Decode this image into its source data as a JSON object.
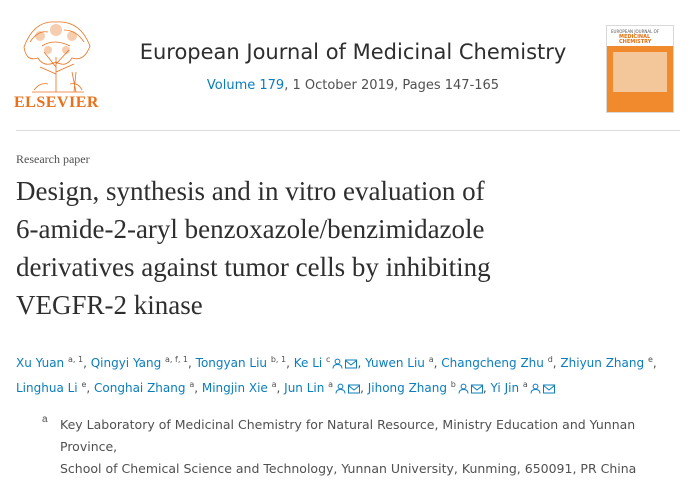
{
  "publisher": {
    "wordmark": "ELSEVIER"
  },
  "journal": {
    "title": "European Journal of Medicinal Chemistry",
    "volume_link": "Volume 179",
    "details": ", 1 October 2019, Pages 147-165"
  },
  "cover": {
    "line1": "EUROPEAN JOURNAL OF",
    "line2a": "MEDICINAL",
    "line2b": "CHEMISTRY"
  },
  "article": {
    "type": "Research paper",
    "title_lines": [
      "Design, synthesis and in vitro evaluation of",
      "6-amide-2-aryl benzoxazole/benzimidazole",
      "derivatives against tumor cells by inhibiting",
      "VEGFR-2 kinase"
    ]
  },
  "authors": [
    {
      "name": "Xu Yuan",
      "sup": "a, 1",
      "person": false,
      "mail": false
    },
    {
      "name": "Qingyi Yang",
      "sup": "a, f, 1",
      "person": false,
      "mail": false
    },
    {
      "name": "Tongyan Liu",
      "sup": "b, 1",
      "person": false,
      "mail": false
    },
    {
      "name": "Ke Li",
      "sup": "c",
      "person": true,
      "mail": true
    },
    {
      "name": "Yuwen Liu",
      "sup": "a",
      "person": false,
      "mail": false
    },
    {
      "name": "Changcheng Zhu",
      "sup": "d",
      "person": false,
      "mail": false
    },
    {
      "name": "Zhiyun Zhang",
      "sup": "e",
      "person": false,
      "mail": false
    },
    {
      "name": "Linghua Li",
      "sup": "e",
      "person": false,
      "mail": false
    },
    {
      "name": "Conghai Zhang",
      "sup": "a",
      "person": false,
      "mail": false
    },
    {
      "name": "Mingjin Xie",
      "sup": "a",
      "person": false,
      "mail": false
    },
    {
      "name": "Jun Lin",
      "sup": "a",
      "person": true,
      "mail": true
    },
    {
      "name": "Jihong Zhang",
      "sup": "b",
      "person": true,
      "mail": true
    },
    {
      "name": "Yi Jin",
      "sup": "a",
      "person": true,
      "mail": true
    }
  ],
  "affiliation": {
    "mark": "a",
    "line1": "Key Laboratory of Medicinal Chemistry for Natural Resource, Ministry Education and Yunnan Province,",
    "line2": "School of Chemical Science and Technology, Yunnan University, Kunming, 650091, PR China"
  },
  "colors": {
    "link": "#0c7dbb",
    "elsevier_orange": "#e9711c",
    "text": "#2e2e2e"
  },
  "icons": [
    "elsevier-tree-logo",
    "person-icon",
    "envelope-icon"
  ]
}
